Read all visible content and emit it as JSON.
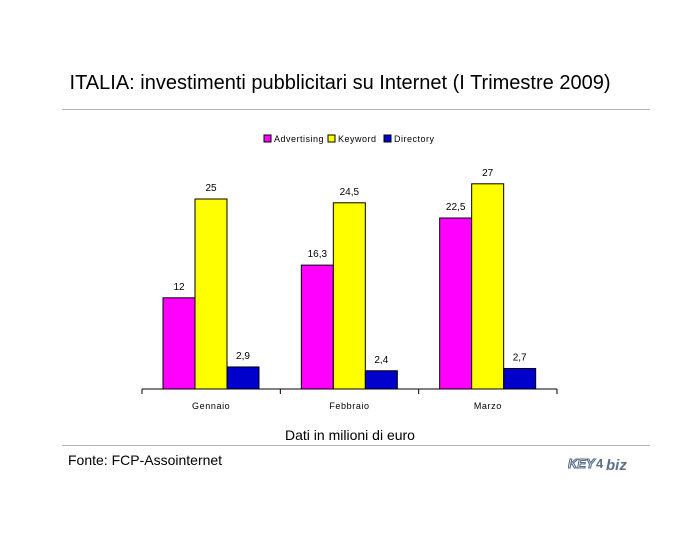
{
  "header": {
    "title": "ITALIA: investimenti pubblicitari su Internet (I Trimestre 2009)"
  },
  "footer": {
    "subtitle": "Dati in milioni di euro",
    "source": "Fonte: FCP-Assointernet",
    "logo_text": "KEY4biz"
  },
  "chart_data": {
    "type": "bar",
    "categories": [
      "Gennaio",
      "Febbraio",
      "Marzo"
    ],
    "series": [
      {
        "name": "Advertising",
        "values": [
          12,
          16.3,
          22.5
        ],
        "labels": [
          "12",
          "16,3",
          "22,5"
        ],
        "color": "#ff00ff"
      },
      {
        "name": "Keyword",
        "values": [
          25,
          24.5,
          27
        ],
        "labels": [
          "25",
          "24,5",
          "27"
        ],
        "color": "#ffff00"
      },
      {
        "name": "Directory",
        "values": [
          2.9,
          2.4,
          2.7
        ],
        "labels": [
          "2,9",
          "2,4",
          "2,7"
        ],
        "color": "#0000cc"
      }
    ],
    "ylim": [
      0,
      27
    ],
    "grid": false,
    "legend": "top",
    "show_y_axis": false
  }
}
